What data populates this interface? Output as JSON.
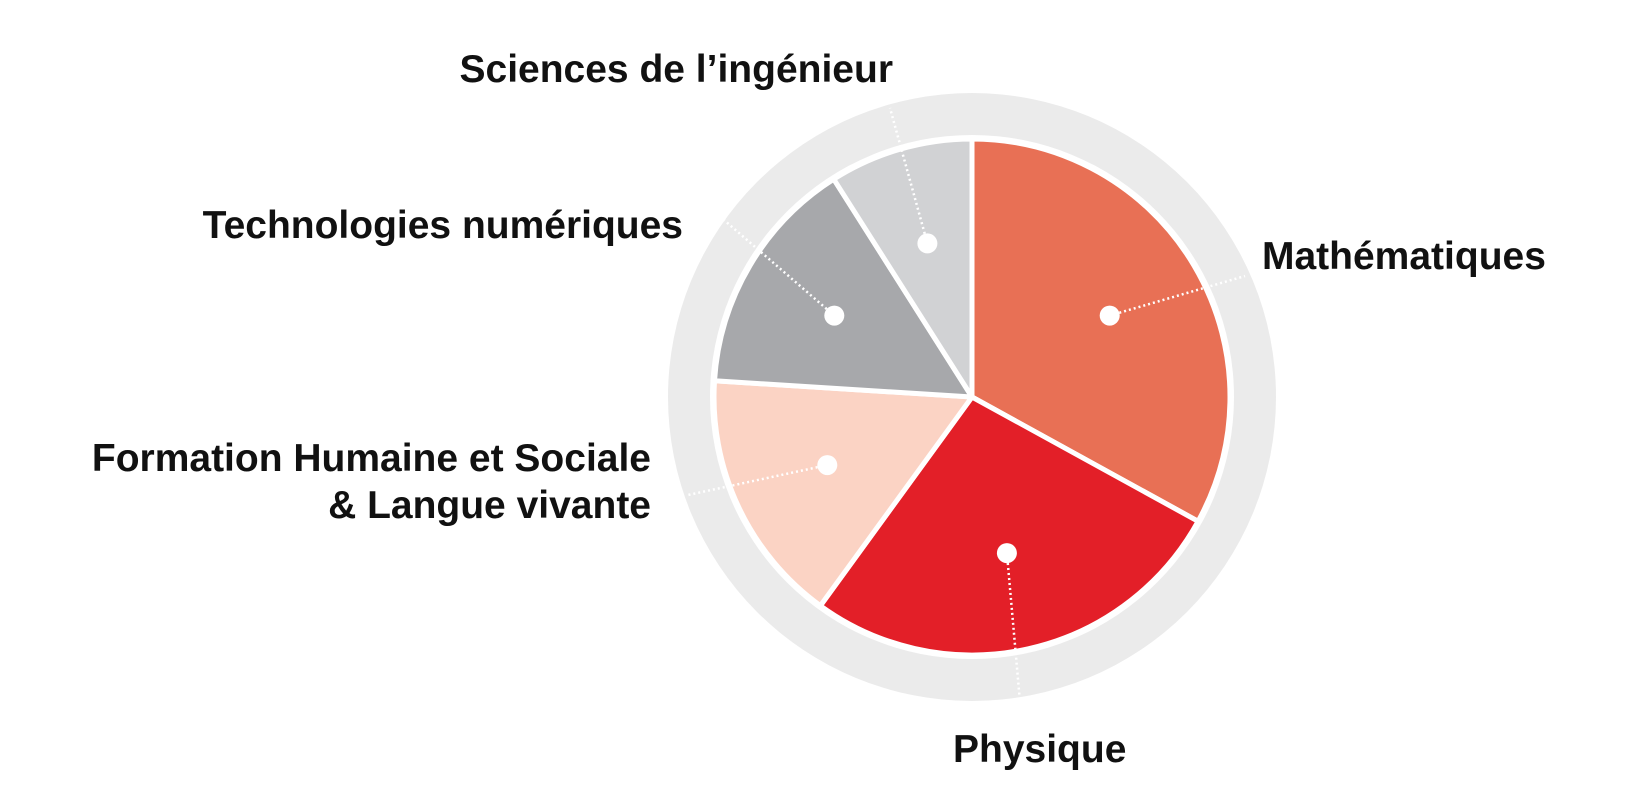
{
  "chart_data": {
    "type": "pie",
    "title": "",
    "slices": [
      {
        "label": "Mathématiques",
        "value": 33,
        "color": "#e87055"
      },
      {
        "label": "Physique",
        "value": 27,
        "color": "#e31f28"
      },
      {
        "label": "Formation Humaine et Sociale & Langue vivante",
        "value": 16,
        "color": "#fbd3c4"
      },
      {
        "label": "Technologies numériques",
        "value": 15,
        "color": "#a7a8ab"
      },
      {
        "label": "Sciences de l’ingénieur",
        "value": 9,
        "color": "#d1d2d4"
      }
    ],
    "label_lines": [
      [
        "Mathématiques"
      ],
      [
        "Physique"
      ],
      [
        "Formation Humaine et Sociale",
        "& Langue vivante"
      ],
      [
        "Technologies numériques"
      ],
      [
        "Sciences de l’ingénieur"
      ]
    ],
    "ring_color": "#ebebeb",
    "legend": "none"
  }
}
